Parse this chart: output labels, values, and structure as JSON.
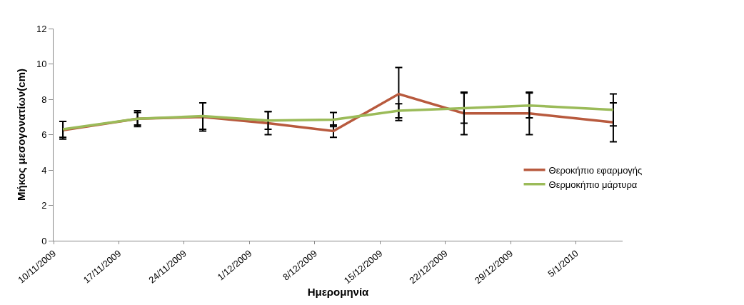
{
  "chart_data": {
    "type": "line",
    "xlabel": "Ημερομηνία",
    "ylabel": "Μήκος μεσογονατίων(cm)",
    "x": [
      "2009-11-11",
      "2009-11-19",
      "2009-11-26",
      "2009-12-03",
      "2009-12-10",
      "2009-12-17",
      "2009-12-24",
      "2009-12-31",
      "2010-01-09"
    ],
    "series": [
      {
        "name": "Θεροκήπιο εφαρμογής",
        "color": "#b85a3e",
        "values": [
          6.25,
          6.9,
          7.0,
          6.65,
          6.2,
          8.3,
          7.2,
          7.2,
          6.7
        ],
        "errors": [
          0.5,
          0.45,
          0.8,
          0.65,
          0.35,
          1.5,
          1.2,
          1.2,
          1.1
        ]
      },
      {
        "name": "Θερμοκήπιο μάρτυρα",
        "color": "#9bbb59",
        "values": [
          6.3,
          6.9,
          7.05,
          6.8,
          6.85,
          7.35,
          7.5,
          7.65,
          7.4
        ],
        "errors": [
          0.45,
          0.35,
          0.75,
          0.5,
          0.4,
          0.4,
          0.85,
          0.7,
          0.9
        ]
      }
    ],
    "xlim": [
      "2009-11-10",
      "2010-01-10"
    ],
    "xticks": [
      {
        "value": "2009-11-10",
        "label": "10/11/2009"
      },
      {
        "value": "2009-11-17",
        "label": "17/11/2009"
      },
      {
        "value": "2009-11-24",
        "label": "24/11/2009"
      },
      {
        "value": "2009-12-01",
        "label": "1/12/2009"
      },
      {
        "value": "2009-12-08",
        "label": "8/12/2009"
      },
      {
        "value": "2009-12-15",
        "label": "15/12/2009"
      },
      {
        "value": "2009-12-22",
        "label": "22/12/2009"
      },
      {
        "value": "2009-12-29",
        "label": "29/12/2009"
      },
      {
        "value": "2010-01-05",
        "label": "5/1/2010"
      }
    ],
    "ylim": [
      0,
      12
    ],
    "yticks": [
      0,
      2,
      4,
      6,
      8,
      10,
      12
    ],
    "grid": false,
    "legend": "right",
    "marker": "none",
    "line_style": "solid"
  }
}
